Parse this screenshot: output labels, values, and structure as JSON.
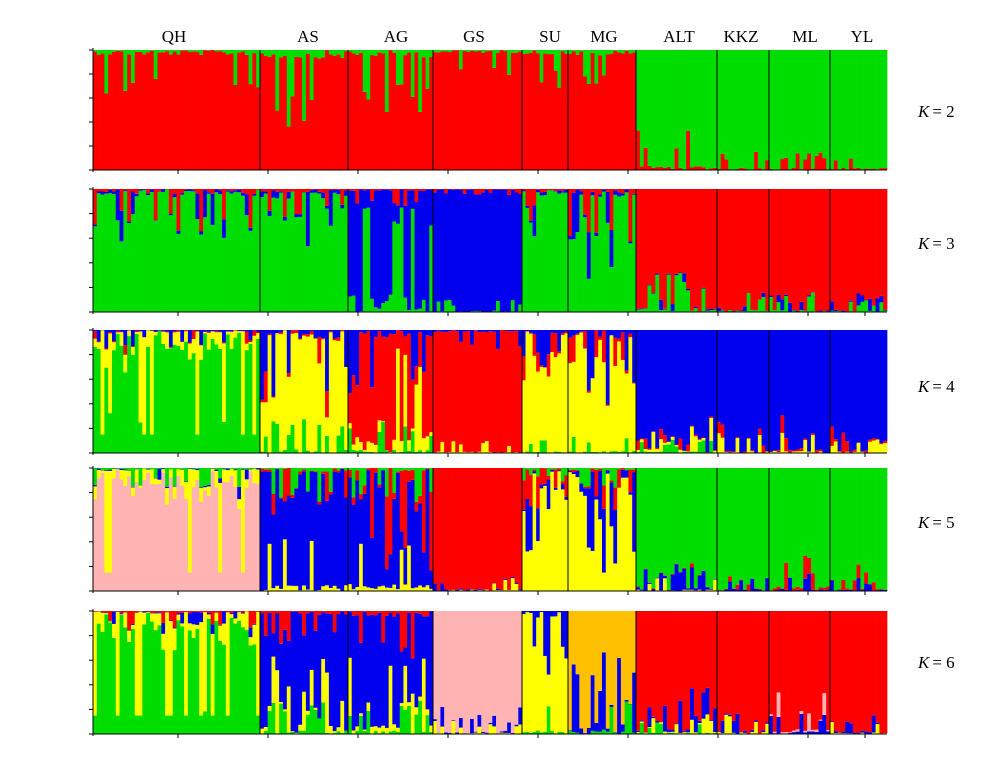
{
  "chart_data": {
    "type": "bar",
    "stacked": true,
    "plot_kind": "structure-admixture",
    "population_labels": [
      "QH",
      "AS",
      "AG",
      "GS",
      "SU",
      "MG",
      "ALT",
      "KKZ",
      "ML",
      "YL"
    ],
    "ylim": [
      0,
      1
    ],
    "grid": false,
    "colors": {
      "red": "#ff0000",
      "green": "#00dd00",
      "blue": "#0000ee",
      "yellow": "#ffff00",
      "pink": "#ffb3b3",
      "orange": "#ffc000"
    },
    "panels": [
      {
        "k_label": "K = 2",
        "k_letter": "K",
        "k_value": "= 2",
        "population_proportions": {
          "QH": {
            "red": 0.93,
            "green": 0.07
          },
          "AS": {
            "red": 0.88,
            "green": 0.12
          },
          "AG": {
            "red": 0.9,
            "green": 0.1
          },
          "GS": {
            "red": 0.96,
            "green": 0.04
          },
          "SU": {
            "red": 0.94,
            "green": 0.06
          },
          "MG": {
            "red": 0.92,
            "green": 0.08
          },
          "ALT": {
            "red": 0.06,
            "green": 0.94
          },
          "KKZ": {
            "red": 0.03,
            "green": 0.97
          },
          "ML": {
            "red": 0.03,
            "green": 0.97
          },
          "YL": {
            "red": 0.03,
            "green": 0.97
          }
        }
      },
      {
        "k_label": "K = 3",
        "k_letter": "K",
        "k_value": "= 3",
        "population_proportions": {
          "QH": {
            "green": 0.88,
            "blue": 0.05,
            "red": 0.07
          },
          "AS": {
            "green": 0.85,
            "blue": 0.1,
            "red": 0.05
          },
          "AG": {
            "green": 0.25,
            "blue": 0.72,
            "red": 0.03
          },
          "GS": {
            "green": 0.02,
            "blue": 0.97,
            "red": 0.01
          },
          "SU": {
            "green": 0.9,
            "blue": 0.05,
            "red": 0.05
          },
          "MG": {
            "green": 0.85,
            "blue": 0.07,
            "red": 0.08
          },
          "ALT": {
            "red": 0.92,
            "green": 0.06,
            "blue": 0.02
          },
          "KKZ": {
            "red": 0.96,
            "green": 0.03,
            "blue": 0.01
          },
          "ML": {
            "red": 0.95,
            "green": 0.03,
            "blue": 0.02
          },
          "YL": {
            "red": 0.96,
            "green": 0.02,
            "blue": 0.02
          }
        }
      },
      {
        "k_label": "K = 4",
        "k_letter": "K",
        "k_value": "= 4",
        "population_proportions": {
          "QH": {
            "green": 0.7,
            "yellow": 0.25,
            "blue": 0.03,
            "red": 0.02
          },
          "AS": {
            "yellow": 0.78,
            "blue": 0.12,
            "green": 0.05,
            "red": 0.05
          },
          "AG": {
            "red": 0.65,
            "yellow": 0.2,
            "blue": 0.1,
            "green": 0.05
          },
          "GS": {
            "red": 0.95,
            "blue": 0.03,
            "yellow": 0.02
          },
          "SU": {
            "yellow": 0.88,
            "blue": 0.06,
            "red": 0.04,
            "green": 0.02
          },
          "MG": {
            "yellow": 0.8,
            "blue": 0.12,
            "red": 0.05,
            "green": 0.03
          },
          "ALT": {
            "blue": 0.92,
            "yellow": 0.04,
            "red": 0.02,
            "green": 0.02
          },
          "KKZ": {
            "blue": 0.95,
            "yellow": 0.03,
            "red": 0.02
          },
          "ML": {
            "blue": 0.93,
            "red": 0.04,
            "yellow": 0.03
          },
          "YL": {
            "blue": 0.95,
            "red": 0.03,
            "yellow": 0.02
          }
        }
      },
      {
        "k_label": "K = 5",
        "k_letter": "K",
        "k_value": "= 5",
        "population_proportions": {
          "QH": {
            "pink": 0.7,
            "yellow": 0.25,
            "green": 0.03,
            "blue": 0.02
          },
          "AS": {
            "blue": 0.82,
            "yellow": 0.08,
            "green": 0.05,
            "red": 0.05
          },
          "AG": {
            "blue": 0.7,
            "red": 0.15,
            "yellow": 0.1,
            "green": 0.05
          },
          "GS": {
            "red": 0.96,
            "yellow": 0.02,
            "blue": 0.02
          },
          "SU": {
            "yellow": 0.85,
            "blue": 0.08,
            "red": 0.05,
            "green": 0.02
          },
          "MG": {
            "yellow": 0.8,
            "blue": 0.12,
            "red": 0.05,
            "green": 0.03
          },
          "ALT": {
            "green": 0.93,
            "blue": 0.04,
            "yellow": 0.02,
            "red": 0.01
          },
          "KKZ": {
            "green": 0.96,
            "blue": 0.03,
            "red": 0.01
          },
          "ML": {
            "green": 0.93,
            "red": 0.04,
            "blue": 0.03
          },
          "YL": {
            "green": 0.96,
            "blue": 0.02,
            "red": 0.02
          }
        }
      },
      {
        "k_label": "K = 6",
        "k_letter": "K",
        "k_value": "= 6",
        "population_proportions": {
          "QH": {
            "green": 0.65,
            "yellow": 0.3,
            "red": 0.03,
            "blue": 0.02
          },
          "AS": {
            "blue": 0.8,
            "yellow": 0.1,
            "red": 0.05,
            "green": 0.05
          },
          "AG": {
            "blue": 0.75,
            "yellow": 0.12,
            "red": 0.08,
            "green": 0.05
          },
          "GS": {
            "pink": 0.95,
            "blue": 0.03,
            "yellow": 0.02
          },
          "SU": {
            "yellow": 0.85,
            "blue": 0.1,
            "green": 0.05
          },
          "MG": {
            "orange": 0.82,
            "blue": 0.12,
            "green": 0.06
          },
          "ALT": {
            "red": 0.9,
            "blue": 0.05,
            "yellow": 0.03,
            "green": 0.02
          },
          "KKZ": {
            "red": 0.94,
            "blue": 0.03,
            "yellow": 0.03
          },
          "ML": {
            "red": 0.92,
            "pink": 0.04,
            "blue": 0.04
          },
          "YL": {
            "red": 0.95,
            "blue": 0.03,
            "yellow": 0.02
          }
        }
      }
    ]
  }
}
